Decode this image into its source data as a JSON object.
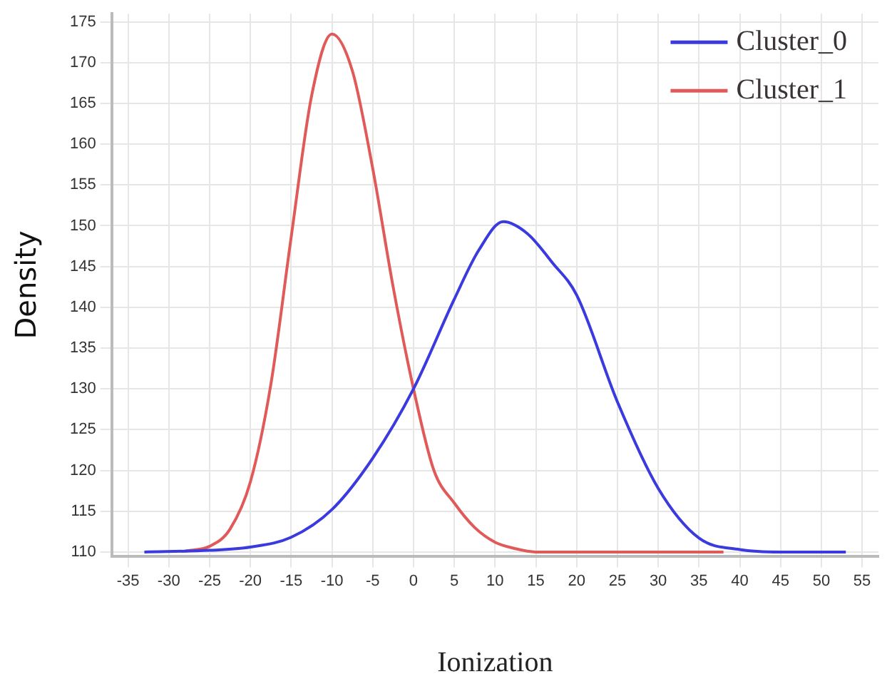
{
  "chart_data": {
    "type": "line",
    "xlabel": "Ionization",
    "ylabel": "Density",
    "xlim": [
      -37,
      57
    ],
    "xticks": [
      -35,
      -30,
      -25,
      -20,
      -15,
      -10,
      -5,
      0,
      5,
      10,
      15,
      20,
      25,
      30,
      35,
      40,
      45,
      50,
      55
    ],
    "ylim": [
      109.5,
      176
    ],
    "yticks": [
      110,
      115,
      120,
      125,
      130,
      135,
      140,
      145,
      150,
      155,
      160,
      165,
      170,
      175
    ],
    "grid": true,
    "legend": "top right",
    "marker": "none",
    "line_style": "solid",
    "series": [
      {
        "name": "Cluster_0",
        "color": "#3a3adf",
        "x": [
          -33,
          -25,
          -20,
          -15,
          -10,
          -5,
          0,
          5,
          8,
          11,
          14,
          17,
          20,
          25,
          30,
          35,
          40,
          45,
          53
        ],
        "values": [
          110,
          110.2,
          110.6,
          111.8,
          115.2,
          121.5,
          130,
          141,
          147,
          150.5,
          149,
          145.5,
          141.5,
          128.4,
          117.8,
          111.7,
          110.3,
          110,
          110
        ]
      },
      {
        "name": "Cluster_1",
        "color": "#e05a5a",
        "x": [
          -28,
          -25,
          -22.5,
          -20,
          -17.5,
          -15,
          -12.5,
          -10,
          -7.5,
          -5,
          -2.5,
          0,
          2.5,
          5,
          7.5,
          10,
          12.5,
          15,
          25,
          38
        ],
        "values": [
          110.1,
          110.7,
          112.8,
          118.6,
          130.5,
          148.6,
          165.9,
          173.5,
          169,
          157,
          142.5,
          130,
          120,
          116,
          113,
          111.2,
          110.4,
          110,
          110,
          110
        ]
      }
    ]
  }
}
